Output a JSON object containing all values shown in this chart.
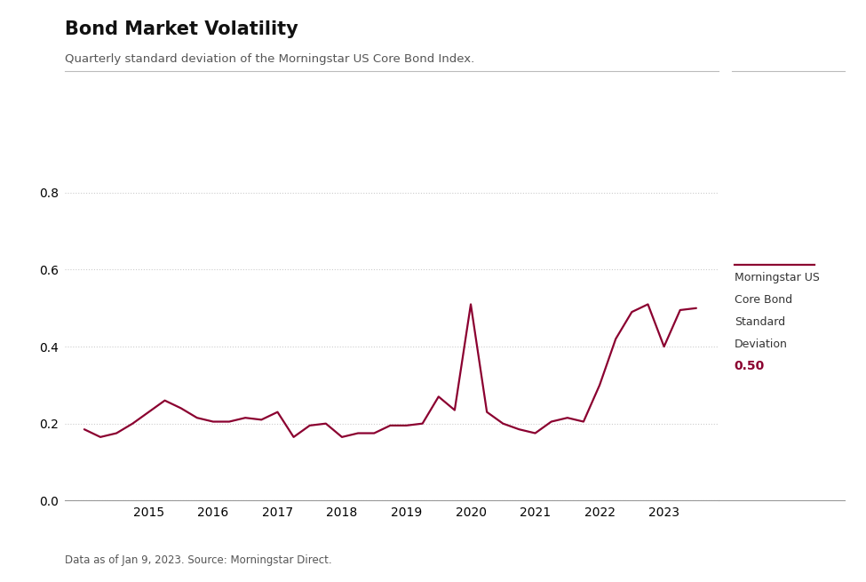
{
  "title": "Bond Market Volatility",
  "subtitle": "Quarterly standard deviation of the Morningstar US Core Bond Index.",
  "footnote": "Data as of Jan 9, 2023. Source: Morningstar Direct.",
  "line_color": "#8B0030",
  "background_color": "#FFFFFF",
  "legend_label_line1": "Morningstar US",
  "legend_label_line2": "Core Bond",
  "legend_label_line3": "Standard",
  "legend_label_line4": "Deviation",
  "legend_value": "0.50",
  "legend_value_color": "#8B0030",
  "ylim": [
    0.0,
    0.9
  ],
  "yticks": [
    0,
    0.2,
    0.4,
    0.6,
    0.8
  ],
  "x_data": [
    2014.0,
    2014.25,
    2014.5,
    2014.75,
    2015.0,
    2015.25,
    2015.5,
    2015.75,
    2016.0,
    2016.25,
    2016.5,
    2016.75,
    2017.0,
    2017.25,
    2017.5,
    2017.75,
    2018.0,
    2018.25,
    2018.5,
    2018.75,
    2019.0,
    2019.25,
    2019.5,
    2019.75,
    2020.0,
    2020.25,
    2020.5,
    2020.75,
    2021.0,
    2021.25,
    2021.5,
    2021.75,
    2022.0,
    2022.25,
    2022.5,
    2022.75,
    2023.0,
    2023.25,
    2023.5
  ],
  "y_data": [
    0.185,
    0.165,
    0.175,
    0.2,
    0.23,
    0.26,
    0.24,
    0.215,
    0.205,
    0.205,
    0.215,
    0.21,
    0.23,
    0.165,
    0.195,
    0.2,
    0.165,
    0.175,
    0.175,
    0.195,
    0.195,
    0.2,
    0.27,
    0.235,
    0.51,
    0.23,
    0.2,
    0.185,
    0.175,
    0.205,
    0.215,
    0.205,
    0.3,
    0.42,
    0.49,
    0.51,
    0.4,
    0.495,
    0.5
  ],
  "xlim_left": 2013.7,
  "xlim_right": 2023.85,
  "xticks": [
    2015,
    2016,
    2017,
    2018,
    2019,
    2020,
    2021,
    2022,
    2023
  ],
  "grid_color": "#CCCCCC",
  "title_fontsize": 15,
  "subtitle_fontsize": 9.5,
  "tick_fontsize": 10,
  "footnote_fontsize": 8.5
}
